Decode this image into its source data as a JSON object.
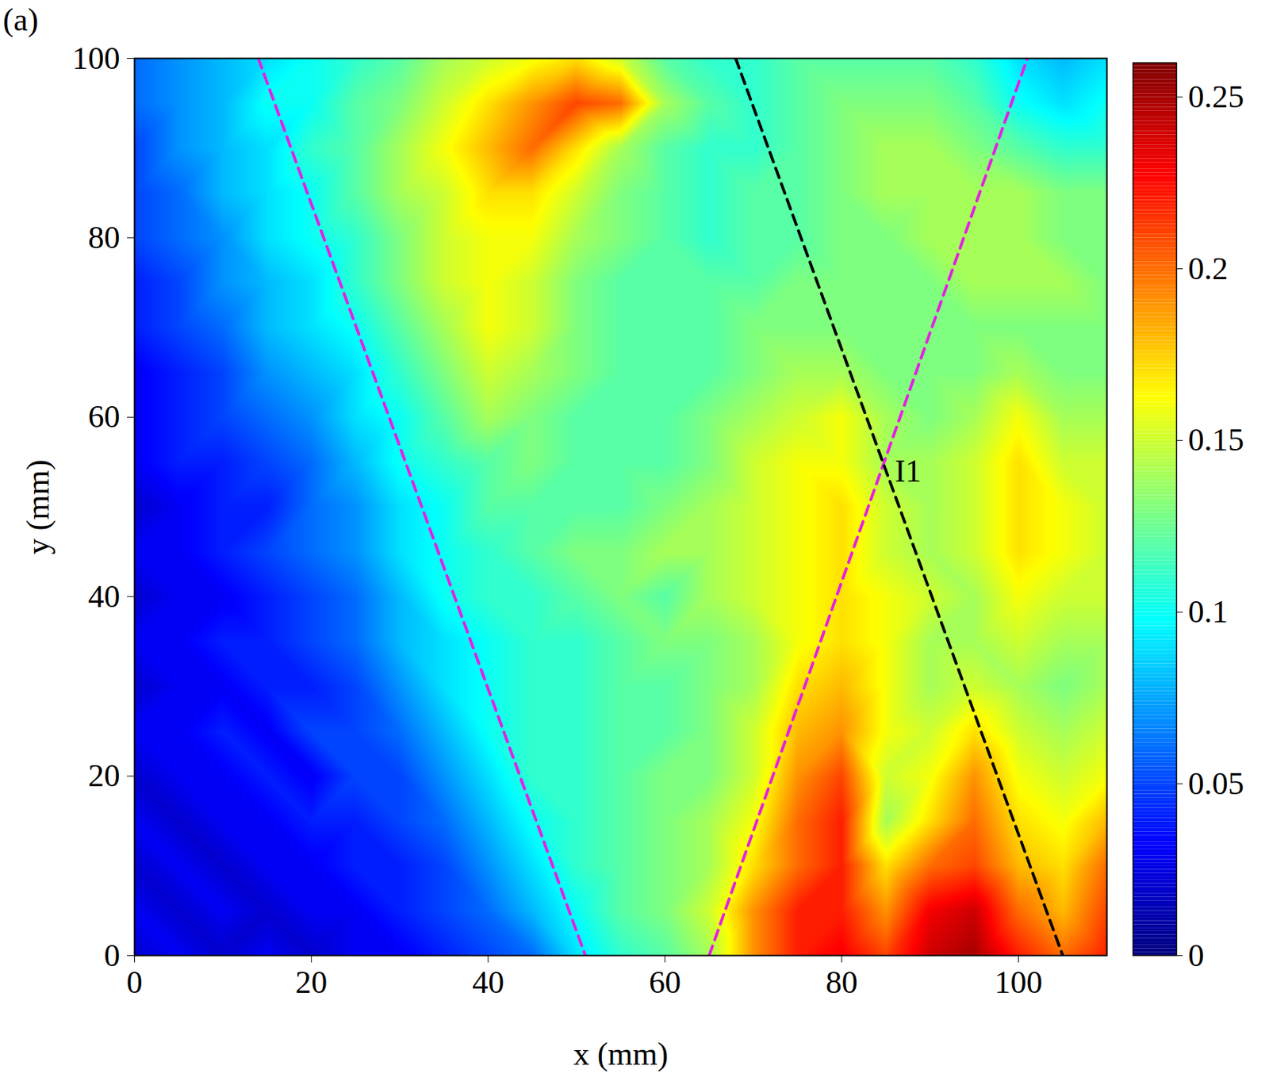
{
  "chart_data": {
    "type": "heatmap",
    "panel_label": "(a)",
    "x_label": "x (mm)",
    "y_label": "y (mm)",
    "xlim": [
      0,
      110
    ],
    "xticks": [
      0,
      20,
      40,
      60,
      80,
      100
    ],
    "ylim": [
      0,
      100
    ],
    "yticks": [
      0,
      20,
      40,
      60,
      80,
      100
    ],
    "heatmap": {
      "x": [
        0,
        5,
        10,
        15,
        20,
        25,
        30,
        35,
        40,
        45,
        50,
        55,
        60,
        65,
        70,
        75,
        80,
        85,
        90,
        95,
        100,
        105,
        110
      ],
      "y": [
        0,
        5,
        10,
        15,
        20,
        25,
        30,
        35,
        40,
        45,
        50,
        55,
        60,
        65,
        70,
        75,
        80,
        85,
        90,
        95,
        100
      ],
      "values": [
        [
          0.02,
          0.03,
          0.02,
          0.03,
          0.02,
          0.03,
          0.03,
          0.04,
          0.05,
          0.06,
          0.09,
          0.11,
          0.12,
          0.14,
          0.19,
          0.22,
          0.23,
          0.21,
          0.24,
          0.25,
          0.22,
          0.2,
          0.22
        ],
        [
          0.03,
          0.02,
          0.03,
          0.02,
          0.03,
          0.03,
          0.04,
          0.05,
          0.06,
          0.08,
          0.1,
          0.12,
          0.13,
          0.15,
          0.19,
          0.22,
          0.22,
          0.19,
          0.23,
          0.24,
          0.2,
          0.18,
          0.21
        ],
        [
          0.02,
          0.03,
          0.02,
          0.03,
          0.03,
          0.04,
          0.04,
          0.05,
          0.07,
          0.09,
          0.11,
          0.12,
          0.13,
          0.14,
          0.17,
          0.2,
          0.22,
          0.17,
          0.2,
          0.21,
          0.18,
          0.17,
          0.2
        ],
        [
          0.03,
          0.02,
          0.03,
          0.03,
          0.04,
          0.04,
          0.05,
          0.06,
          0.08,
          0.1,
          0.11,
          0.12,
          0.13,
          0.14,
          0.16,
          0.2,
          0.22,
          0.14,
          0.17,
          0.2,
          0.17,
          0.16,
          0.18
        ],
        [
          0.02,
          0.03,
          0.03,
          0.04,
          0.03,
          0.05,
          0.05,
          0.07,
          0.09,
          0.11,
          0.11,
          0.12,
          0.13,
          0.13,
          0.15,
          0.19,
          0.21,
          0.15,
          0.16,
          0.19,
          0.16,
          0.15,
          0.16
        ],
        [
          0.03,
          0.03,
          0.04,
          0.03,
          0.05,
          0.05,
          0.06,
          0.08,
          0.1,
          0.11,
          0.11,
          0.12,
          0.12,
          0.13,
          0.15,
          0.18,
          0.19,
          0.16,
          0.15,
          0.17,
          0.15,
          0.14,
          0.15
        ],
        [
          0.02,
          0.03,
          0.03,
          0.04,
          0.04,
          0.05,
          0.07,
          0.09,
          0.1,
          0.11,
          0.11,
          0.12,
          0.12,
          0.13,
          0.14,
          0.17,
          0.18,
          0.16,
          0.14,
          0.15,
          0.14,
          0.13,
          0.14
        ],
        [
          0.03,
          0.03,
          0.04,
          0.04,
          0.05,
          0.06,
          0.08,
          0.09,
          0.1,
          0.11,
          0.11,
          0.12,
          0.13,
          0.13,
          0.14,
          0.16,
          0.17,
          0.16,
          0.14,
          0.14,
          0.15,
          0.14,
          0.14
        ],
        [
          0.02,
          0.03,
          0.03,
          0.04,
          0.05,
          0.06,
          0.08,
          0.1,
          0.11,
          0.11,
          0.12,
          0.13,
          0.12,
          0.14,
          0.15,
          0.16,
          0.17,
          0.16,
          0.15,
          0.14,
          0.16,
          0.15,
          0.15
        ],
        [
          0.03,
          0.03,
          0.04,
          0.05,
          0.06,
          0.07,
          0.09,
          0.1,
          0.11,
          0.12,
          0.13,
          0.13,
          0.14,
          0.14,
          0.15,
          0.16,
          0.17,
          0.15,
          0.14,
          0.15,
          0.17,
          0.16,
          0.15
        ],
        [
          0.02,
          0.03,
          0.04,
          0.04,
          0.06,
          0.07,
          0.09,
          0.1,
          0.12,
          0.12,
          0.12,
          0.12,
          0.13,
          0.14,
          0.15,
          0.16,
          0.17,
          0.15,
          0.14,
          0.15,
          0.17,
          0.16,
          0.15
        ],
        [
          0.03,
          0.04,
          0.04,
          0.05,
          0.06,
          0.08,
          0.1,
          0.11,
          0.12,
          0.13,
          0.12,
          0.12,
          0.12,
          0.13,
          0.15,
          0.16,
          0.16,
          0.14,
          0.14,
          0.15,
          0.17,
          0.15,
          0.15
        ],
        [
          0.03,
          0.04,
          0.05,
          0.06,
          0.07,
          0.09,
          0.1,
          0.12,
          0.14,
          0.13,
          0.12,
          0.12,
          0.12,
          0.13,
          0.14,
          0.15,
          0.16,
          0.14,
          0.13,
          0.14,
          0.16,
          0.14,
          0.14
        ],
        [
          0.03,
          0.04,
          0.05,
          0.07,
          0.08,
          0.09,
          0.11,
          0.13,
          0.15,
          0.14,
          0.13,
          0.12,
          0.12,
          0.12,
          0.13,
          0.14,
          0.14,
          0.13,
          0.13,
          0.13,
          0.14,
          0.13,
          0.13
        ],
        [
          0.04,
          0.05,
          0.06,
          0.08,
          0.09,
          0.1,
          0.12,
          0.14,
          0.16,
          0.15,
          0.13,
          0.12,
          0.12,
          0.12,
          0.13,
          0.13,
          0.13,
          0.13,
          0.13,
          0.13,
          0.13,
          0.13,
          0.13
        ],
        [
          0.04,
          0.05,
          0.07,
          0.08,
          0.09,
          0.11,
          0.13,
          0.15,
          0.16,
          0.15,
          0.13,
          0.12,
          0.12,
          0.12,
          0.12,
          0.13,
          0.13,
          0.13,
          0.13,
          0.14,
          0.14,
          0.14,
          0.13
        ],
        [
          0.05,
          0.06,
          0.07,
          0.09,
          0.1,
          0.11,
          0.13,
          0.15,
          0.16,
          0.16,
          0.14,
          0.13,
          0.12,
          0.11,
          0.12,
          0.12,
          0.13,
          0.13,
          0.14,
          0.14,
          0.14,
          0.13,
          0.13
        ],
        [
          0.05,
          0.06,
          0.08,
          0.09,
          0.1,
          0.12,
          0.14,
          0.15,
          0.17,
          0.17,
          0.15,
          0.13,
          0.12,
          0.11,
          0.12,
          0.12,
          0.13,
          0.14,
          0.14,
          0.14,
          0.14,
          0.13,
          0.13
        ],
        [
          0.05,
          0.07,
          0.08,
          0.09,
          0.11,
          0.12,
          0.14,
          0.16,
          0.18,
          0.2,
          0.17,
          0.14,
          0.12,
          0.11,
          0.11,
          0.12,
          0.13,
          0.14,
          0.14,
          0.13,
          0.12,
          0.11,
          0.11
        ],
        [
          0.06,
          0.07,
          0.08,
          0.1,
          0.1,
          0.12,
          0.13,
          0.15,
          0.17,
          0.19,
          0.21,
          0.2,
          0.14,
          0.12,
          0.11,
          0.12,
          0.13,
          0.13,
          0.13,
          0.12,
          0.1,
          0.09,
          0.1
        ],
        [
          0.06,
          0.07,
          0.08,
          0.09,
          0.1,
          0.11,
          0.12,
          0.14,
          0.15,
          0.16,
          0.17,
          0.15,
          0.12,
          0.11,
          0.11,
          0.12,
          0.12,
          0.12,
          0.12,
          0.11,
          0.09,
          0.08,
          0.09
        ]
      ]
    },
    "colorbar": {
      "range": [
        0,
        0.26
      ],
      "ticks": [
        0,
        0.05,
        0.1,
        0.15,
        0.2,
        0.25
      ]
    },
    "lines": [
      {
        "color": "#e61ee6",
        "line_style": "dashed",
        "x": [
          14,
          51
        ],
        "y": [
          100,
          0
        ]
      },
      {
        "color": "#e61ee6",
        "line_style": "dashed",
        "x": [
          65,
          101
        ],
        "y": [
          0,
          100
        ]
      },
      {
        "color": "#000000",
        "line_style": "dashed",
        "x": [
          68,
          105
        ],
        "y": [
          100,
          0
        ]
      }
    ],
    "annotations": [
      {
        "text": "I1",
        "x": 86,
        "y": 54
      }
    ]
  }
}
